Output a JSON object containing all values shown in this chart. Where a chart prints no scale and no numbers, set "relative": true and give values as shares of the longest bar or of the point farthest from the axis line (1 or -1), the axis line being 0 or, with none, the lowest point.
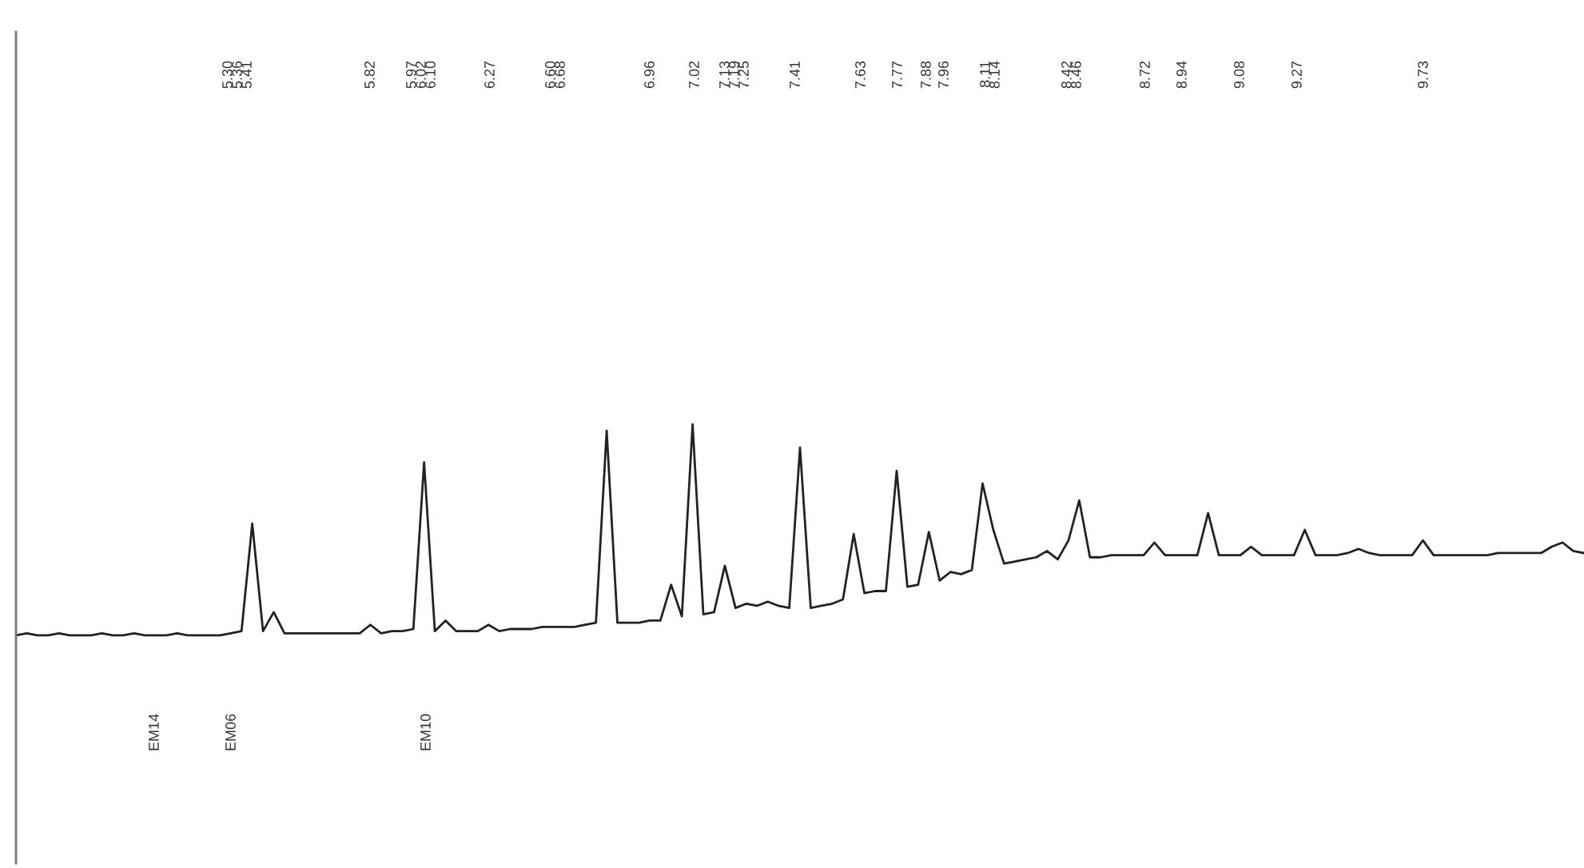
{
  "chart_data": {
    "type": "line",
    "relative": true,
    "tick_labels": false,
    "categories": [
      null,
      null,
      null,
      null,
      null,
      null,
      null,
      null,
      null,
      null,
      null,
      null,
      null,
      null,
      null,
      null,
      null,
      null,
      null,
      null,
      null,
      null,
      null,
      null,
      null,
      null,
      null,
      null,
      null,
      null,
      null,
      null,
      null,
      null,
      null,
      null,
      null,
      null,
      null,
      null,
      null,
      null,
      null,
      null,
      null,
      null,
      null,
      null,
      null,
      null,
      null,
      null,
      null,
      null,
      null,
      null,
      null,
      null,
      null,
      null,
      null,
      null,
      null,
      null,
      null,
      null,
      null,
      null,
      null,
      null,
      null,
      null,
      null,
      null,
      null,
      null,
      null,
      null,
      null,
      null,
      null,
      null,
      null,
      null,
      null,
      null,
      null,
      null,
      null,
      null,
      null,
      null,
      null,
      null,
      null,
      null,
      null,
      null,
      null,
      null,
      null,
      null,
      null,
      null,
      null,
      null,
      null,
      null,
      null,
      null,
      null,
      null,
      null,
      null,
      null,
      null,
      null,
      null,
      null,
      null,
      null,
      null,
      null,
      null,
      null,
      null,
      null,
      null,
      null,
      null,
      null,
      null,
      null,
      null,
      null,
      null,
      null,
      null,
      null,
      null,
      null,
      null,
      null,
      null,
      null,
      null,
      null
    ],
    "series": [
      {
        "color": "#222222",
        "values": [
          0,
          0.01,
          0,
          0,
          0.01,
          0,
          0,
          0,
          0.01,
          0,
          0,
          0.01,
          0,
          0,
          0,
          0.01,
          0,
          0,
          0,
          0,
          0.01,
          0.02,
          0.53,
          0.02,
          0.11,
          0.01,
          0.01,
          0.01,
          0.01,
          0.01,
          0.01,
          0.01,
          0.01,
          0.05,
          0.01,
          0.02,
          0.02,
          0.03,
          0.82,
          0.02,
          0.07,
          0.02,
          0.02,
          0.02,
          0.05,
          0.02,
          0.03,
          0.03,
          0.03,
          0.04,
          0.04,
          0.04,
          0.04,
          0.05,
          0.06,
          0.97,
          0.06,
          0.06,
          0.06,
          0.07,
          0.07,
          0.24,
          0.09,
          1.0,
          0.1,
          0.11,
          0.33,
          0.13,
          0.15,
          0.14,
          0.16,
          0.14,
          0.13,
          0.89,
          0.13,
          0.14,
          0.15,
          0.17,
          0.48,
          0.2,
          0.21,
          0.21,
          0.78,
          0.23,
          0.24,
          0.49,
          0.26,
          0.3,
          0.29,
          0.31,
          0.72,
          0.5,
          0.34,
          0.35,
          0.36,
          0.37,
          0.4,
          0.36,
          0.45,
          0.64,
          0.37,
          0.37,
          0.38,
          0.38,
          0.38,
          0.38,
          0.44,
          0.38,
          0.38,
          0.38,
          0.38,
          0.58,
          0.38,
          0.38,
          0.38,
          0.42,
          0.38,
          0.38,
          0.38,
          0.38,
          0.5,
          0.38,
          0.38,
          0.38,
          0.39,
          0.41,
          0.39,
          0.38,
          0.38,
          0.38,
          0.38,
          0.45,
          0.38,
          0.38,
          0.38,
          0.38,
          0.38,
          0.38,
          0.39,
          0.39,
          0.39,
          0.39,
          0.39,
          0.42,
          0.44,
          0.4,
          0.39
        ]
      }
    ],
    "annotations": [
      "5.30",
      "5.36",
      "5.41",
      "5.82",
      "5.97",
      "6.02",
      "6.10",
      "6.27",
      "6.60",
      "6.68",
      "6.96",
      "7.02",
      "7.13",
      "7.19",
      "7.25",
      "7.41",
      "7.63",
      "7.77",
      "7.88",
      "7.96",
      "8.11",
      "8.14",
      "8.42",
      "8.46",
      "8.72",
      "8.94",
      "9.08",
      "9.27",
      "9.73",
      "EM14",
      "EM06",
      "EM10"
    ]
  }
}
